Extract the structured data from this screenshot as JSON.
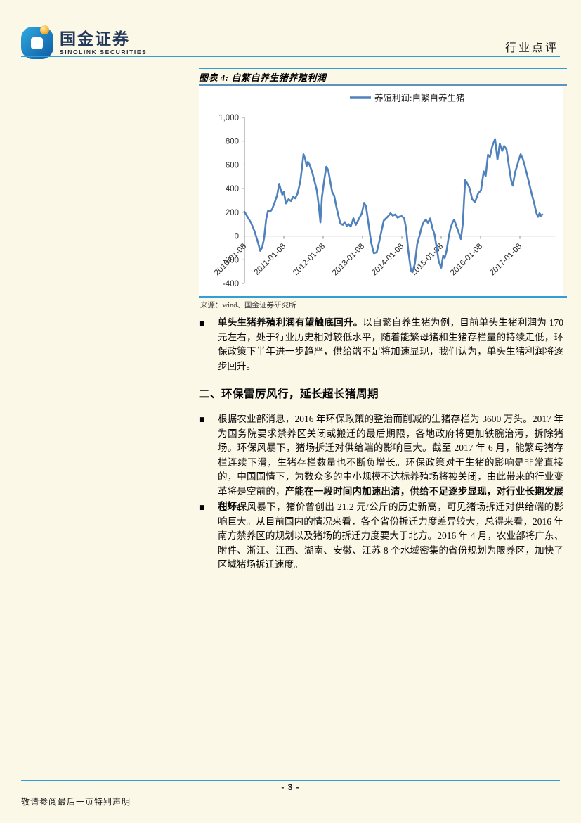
{
  "header": {
    "brand_cn": "国金证券",
    "brand_en": "SINOLINK SECURITIES",
    "doc_type": "行业点评"
  },
  "figure": {
    "title": "图表 4: 自繁自养生猪养殖利润",
    "source": "来源：wind、国金证券研究所"
  },
  "chart_data": {
    "type": "line",
    "title": "图表 4: 自繁自养生猪养殖利润",
    "legend": {
      "label": "养殖利润:自繁自养生猪",
      "position": "top-center"
    },
    "ylim": [
      -400,
      1000
    ],
    "yticks": [
      1000,
      800,
      600,
      400,
      200,
      0,
      -200,
      -400
    ],
    "ytick_labels": [
      "1,000",
      "800",
      "600",
      "400",
      "200",
      "0",
      "-200",
      "-400"
    ],
    "xticks": [
      2010,
      2011,
      2012,
      2013,
      2014,
      2015,
      2016,
      2017
    ],
    "xtick_labels": [
      "2010-01-08",
      "2011-01-08",
      "2012-01-08",
      "2013-01-08",
      "2014-01-08",
      "2015-01-08",
      "2016-01-08",
      "2017-01-08"
    ],
    "grid": false,
    "zero_axis_line": true,
    "line_color": "#4F81BD",
    "axis_color": "#8a8a8a",
    "series": [
      {
        "name": "养殖利润:自繁自养生猪",
        "unit": "元/头",
        "points": [
          [
            2010.0,
            205
          ],
          [
            2010.08,
            160
          ],
          [
            2010.17,
            110
          ],
          [
            2010.25,
            45
          ],
          [
            2010.33,
            -40
          ],
          [
            2010.4,
            -125
          ],
          [
            2010.45,
            -95
          ],
          [
            2010.5,
            -15
          ],
          [
            2010.55,
            140
          ],
          [
            2010.6,
            215
          ],
          [
            2010.65,
            205
          ],
          [
            2010.7,
            225
          ],
          [
            2010.77,
            285
          ],
          [
            2010.83,
            345
          ],
          [
            2010.88,
            440
          ],
          [
            2010.92,
            395
          ],
          [
            2010.96,
            350
          ],
          [
            2011.0,
            375
          ],
          [
            2011.05,
            275
          ],
          [
            2011.12,
            310
          ],
          [
            2011.18,
            295
          ],
          [
            2011.24,
            330
          ],
          [
            2011.29,
            318
          ],
          [
            2011.35,
            360
          ],
          [
            2011.42,
            460
          ],
          [
            2011.46,
            575
          ],
          [
            2011.5,
            690
          ],
          [
            2011.54,
            655
          ],
          [
            2011.58,
            590
          ],
          [
            2011.61,
            625
          ],
          [
            2011.65,
            605
          ],
          [
            2011.72,
            540
          ],
          [
            2011.78,
            462
          ],
          [
            2011.84,
            385
          ],
          [
            2011.89,
            250
          ],
          [
            2011.93,
            115
          ],
          [
            2011.97,
            330
          ],
          [
            2012.03,
            480
          ],
          [
            2012.08,
            585
          ],
          [
            2012.13,
            555
          ],
          [
            2012.17,
            480
          ],
          [
            2012.23,
            370
          ],
          [
            2012.28,
            340
          ],
          [
            2012.33,
            255
          ],
          [
            2012.38,
            180
          ],
          [
            2012.44,
            105
          ],
          [
            2012.5,
            95
          ],
          [
            2012.55,
            118
          ],
          [
            2012.6,
            85
          ],
          [
            2012.65,
            100
          ],
          [
            2012.7,
            80
          ],
          [
            2012.77,
            150
          ],
          [
            2012.83,
            95
          ],
          [
            2012.9,
            140
          ],
          [
            2012.98,
            190
          ],
          [
            2013.04,
            280
          ],
          [
            2013.09,
            250
          ],
          [
            2013.16,
            85
          ],
          [
            2013.22,
            -55
          ],
          [
            2013.29,
            -145
          ],
          [
            2013.36,
            -138
          ],
          [
            2013.42,
            -55
          ],
          [
            2013.48,
            40
          ],
          [
            2013.54,
            130
          ],
          [
            2013.6,
            150
          ],
          [
            2013.66,
            170
          ],
          [
            2013.71,
            192
          ],
          [
            2013.77,
            172
          ],
          [
            2013.83,
            182
          ],
          [
            2013.89,
            155
          ],
          [
            2013.95,
            165
          ],
          [
            2014.0,
            168
          ],
          [
            2014.06,
            148
          ],
          [
            2014.11,
            60
          ],
          [
            2014.16,
            -115
          ],
          [
            2014.23,
            -290
          ],
          [
            2014.27,
            -305
          ],
          [
            2014.33,
            -235
          ],
          [
            2014.39,
            -70
          ],
          [
            2014.45,
            5
          ],
          [
            2014.51,
            85
          ],
          [
            2014.56,
            122
          ],
          [
            2014.61,
            138
          ],
          [
            2014.66,
            112
          ],
          [
            2014.72,
            148
          ],
          [
            2014.78,
            62
          ],
          [
            2014.83,
            15
          ],
          [
            2014.88,
            -90
          ],
          [
            2014.94,
            -215
          ],
          [
            2015.0,
            -268
          ],
          [
            2015.05,
            -165
          ],
          [
            2015.09,
            -185
          ],
          [
            2015.14,
            -120
          ],
          [
            2015.19,
            -10
          ],
          [
            2015.24,
            70
          ],
          [
            2015.29,
            115
          ],
          [
            2015.33,
            138
          ],
          [
            2015.38,
            88
          ],
          [
            2015.44,
            35
          ],
          [
            2015.5,
            -25
          ],
          [
            2015.55,
            105
          ],
          [
            2015.58,
            300
          ],
          [
            2015.61,
            472
          ],
          [
            2015.66,
            445
          ],
          [
            2015.72,
            405
          ],
          [
            2015.79,
            310
          ],
          [
            2015.86,
            285
          ],
          [
            2015.94,
            360
          ],
          [
            2016.01,
            385
          ],
          [
            2016.08,
            545
          ],
          [
            2016.13,
            505
          ],
          [
            2016.19,
            685
          ],
          [
            2016.24,
            668
          ],
          [
            2016.3,
            760
          ],
          [
            2016.37,
            818
          ],
          [
            2016.43,
            645
          ],
          [
            2016.49,
            778
          ],
          [
            2016.55,
            718
          ],
          [
            2016.6,
            760
          ],
          [
            2016.66,
            730
          ],
          [
            2016.72,
            595
          ],
          [
            2016.78,
            465
          ],
          [
            2016.82,
            425
          ],
          [
            2016.88,
            540
          ],
          [
            2016.92,
            582
          ],
          [
            2016.97,
            640
          ],
          [
            2017.02,
            690
          ],
          [
            2017.07,
            655
          ],
          [
            2017.12,
            600
          ],
          [
            2017.18,
            520
          ],
          [
            2017.24,
            440
          ],
          [
            2017.3,
            355
          ],
          [
            2017.36,
            280
          ],
          [
            2017.42,
            195
          ],
          [
            2017.46,
            162
          ],
          [
            2017.5,
            192
          ],
          [
            2017.54,
            170
          ],
          [
            2017.57,
            182
          ]
        ]
      }
    ]
  },
  "sections": {
    "bullet_char": "■",
    "bullet1": {
      "segments": [
        {
          "text": "单头生猪养殖利润有望触底回升。",
          "bold": true
        },
        {
          "text": "以自繁自养生猪为例，目前单头生猪利润为 170 元左右，处于行业历史相对较低水平，随着能繁母猪和生猪存栏量的持续走低，环保政策下半年进一步趋严，供给端不足将加速显现，我们认为，单头生猪利润将逐步回升。",
          "bold": false
        }
      ]
    },
    "heading2": "二、环保雷厉风行，延长超长猪周期",
    "bullet2": {
      "segments": [
        {
          "text": "根据农业部消息，2016 年环保政策的整治而削减的生猪存栏为 3600 万头。2017 年为国务院要求禁养区关闭或搬迁的最后期限，各地政府将更加铁腕治污，拆除猪场。环保风暴下，猪场拆迁对供给端的影响巨大。截至 2017 年 6 月，能繁母猪存栏连续下滑，生猪存栏数量也不断负增长。环保政策对于生猪的影响是非常直接的，中国国情下，为数众多的中小规模不达标养殖场将被关闭，由此带来的行业变革将是空前的，",
          "bold": false
        },
        {
          "text": "产能在一段时间内加速出清，供给不足逐步显现，对行业长期发展利好。",
          "bold": true
        }
      ]
    },
    "bullet3": {
      "segments": [
        {
          "text": "在环保风暴下，猪价曾创出 21.2 元/公斤的历史新高，可见猪场拆迁对供给端的影响巨大。从目前国内的情况来看，各个省份拆迁力度差异较大，总得来看，2016 年南方禁养区的规划以及猪场的拆迁力度要大于北方。2016 年 4 月，农业部将广东、附件、浙江、江西、湖南、安徽、江苏 8 个水域密集的省份规划为限养区，加快了区域猪场拆迁速度。",
          "bold": false
        }
      ]
    }
  },
  "footer": {
    "page_number": "- 3 -",
    "disclaimer": "敬请参阅最后一页特别声明"
  },
  "colors": {
    "page_bg": "#FCF8E8",
    "rule_blue": "#2F9FD6",
    "chart_line": "#4F81BD",
    "chart_bg": "#FFFFFF",
    "text": "#111111"
  }
}
